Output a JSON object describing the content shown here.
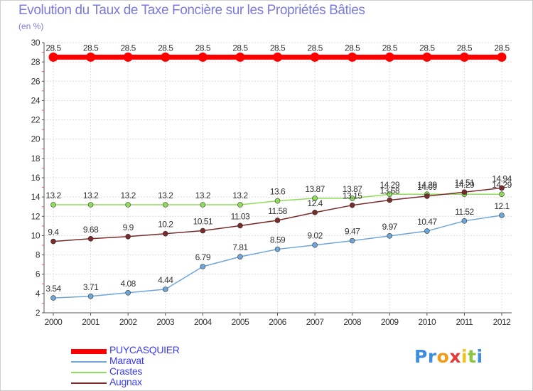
{
  "title": "Evolution du Taux de Taxe Foncière sur les Propriétés Bâties",
  "unit_label": "(en %)",
  "brand": {
    "letters": [
      "P",
      "r",
      "o",
      "x",
      "i",
      "t",
      "i"
    ],
    "colors": [
      "#3d8de0",
      "#3d8de0",
      "#f29a1a",
      "#e23c3c",
      "#f2c21a",
      "#8cc63e",
      "#3d8de0"
    ]
  },
  "chart_data": {
    "type": "line",
    "title": "Evolution du Taux de Taxe Foncière sur les Propriétés Bâties",
    "ylabel": "(en %)",
    "xlabel": "",
    "x": [
      "2000",
      "2001",
      "2002",
      "2003",
      "2004",
      "2005",
      "2006",
      "2007",
      "2008",
      "2009",
      "2010",
      "2011",
      "2012"
    ],
    "ylim": [
      2,
      30
    ],
    "yticks": [
      "2",
      "4",
      "6",
      "8",
      "10",
      "12",
      "14",
      "16",
      "18",
      "20",
      "22",
      "24",
      "26",
      "28",
      "30"
    ],
    "grid": true,
    "legend_position": "bottom-left",
    "series": [
      {
        "name": "PUYCASQUIER",
        "color": "#ff0000",
        "values": [
          28.5,
          28.5,
          28.5,
          28.5,
          28.5,
          28.5,
          28.5,
          28.5,
          28.5,
          28.5,
          28.5,
          28.5,
          28.5
        ],
        "labels": [
          "28.5",
          "28.5",
          "28.5",
          "28.5",
          "28.5",
          "28.5",
          "28.5",
          "28.5",
          "28.5",
          "28.5",
          "28.5",
          "28.5",
          "28.5"
        ]
      },
      {
        "name": "Maravat",
        "color": "#6fa6d9",
        "values": [
          3.54,
          3.71,
          4.08,
          4.44,
          6.79,
          7.81,
          8.59,
          9.02,
          9.47,
          9.97,
          10.47,
          11.52,
          12.1
        ],
        "labels": [
          "3.54",
          "3.71",
          "4.08",
          "4.44",
          "6.79",
          "7.81",
          "8.59",
          "9.02",
          "9.47",
          "9.97",
          "10.47",
          "11.52",
          "12.1"
        ]
      },
      {
        "name": "Crastes",
        "color": "#8fdc5a",
        "values": [
          13.2,
          13.2,
          13.2,
          13.2,
          13.2,
          13.2,
          13.6,
          13.87,
          13.87,
          14.29,
          14.29,
          14.29,
          14.29
        ],
        "labels": [
          "13.2",
          "13.2",
          "13.2",
          "13.2",
          "13.2",
          "13.2",
          "13.6",
          "13.87",
          "13.87",
          "14.29",
          "14.29",
          "14.29",
          "14.29"
        ]
      },
      {
        "name": "Augnax",
        "color": "#7a2a2a",
        "values": [
          9.4,
          9.68,
          9.9,
          10.2,
          10.51,
          11.03,
          11.58,
          12.4,
          13.15,
          13.68,
          14.09,
          14.51,
          14.94
        ],
        "labels": [
          "9.4",
          "9.68",
          "9.9",
          "10.2",
          "10.51",
          "11.03",
          "11.58",
          "12.4",
          "13.15",
          "13.68",
          "14.09",
          "14.51",
          "14.94"
        ]
      }
    ]
  }
}
